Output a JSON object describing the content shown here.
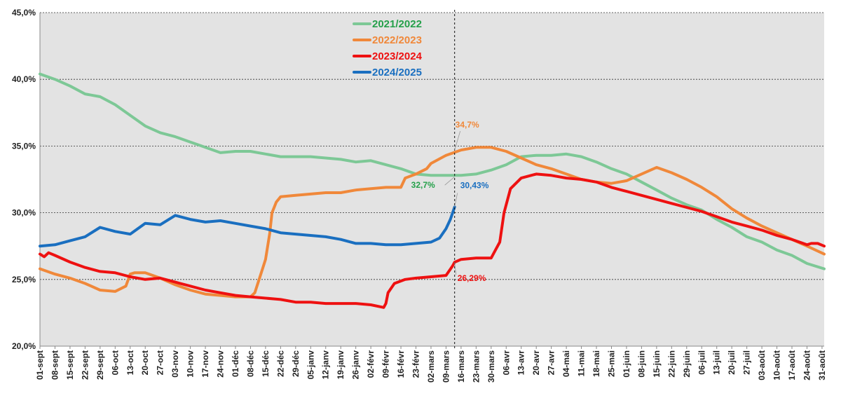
{
  "chart_data": {
    "type": "line",
    "title": "",
    "xlabel": "",
    "ylabel": "",
    "ylim": [
      20,
      45
    ],
    "x_range_days": [
      0,
      365
    ],
    "y_ticks": [
      20,
      25,
      30,
      35,
      40,
      45
    ],
    "y_tick_labels": [
      "20,0%",
      "25,0%",
      "30,0%",
      "35,0%",
      "40,0%",
      "45,0%"
    ],
    "x_tick_labels": [
      "01-sept",
      "08-sept",
      "15-sept",
      "22-sept",
      "29-sept",
      "06-oct",
      "13-oct",
      "20-oct",
      "27-oct",
      "03-nov",
      "10-nov",
      "17-nov",
      "24-nov",
      "01-déc",
      "08-déc",
      "15-déc",
      "22-déc",
      "29-déc",
      "05-janv",
      "12-janv",
      "19-janv",
      "26-janv",
      "02-févr",
      "09-févr",
      "16-févr",
      "23-févr",
      "02-mars",
      "09-mars",
      "16-mars",
      "23-mars",
      "30-mars",
      "06-avr",
      "13-avr",
      "20-avr",
      "27-avr",
      "04-mai",
      "11-mai",
      "18-mai",
      "25-mai",
      "01-juin",
      "08-juin",
      "15-juin",
      "22-juin",
      "29-juin",
      "06-juil",
      "13-juil",
      "20-juil",
      "27-juil",
      "03-août",
      "10-août",
      "17-août",
      "24-août",
      "31-août"
    ],
    "grid": true,
    "background_color": "#e3e3e3",
    "legend_position": "top-center",
    "marker_day": 193,
    "series": [
      {
        "name": "2021/2022",
        "color": "#7dc896",
        "x": [
          0,
          7,
          14,
          21,
          28,
          35,
          42,
          49,
          56,
          63,
          70,
          77,
          84,
          91,
          98,
          105,
          112,
          119,
          126,
          133,
          140,
          147,
          154,
          161,
          168,
          175,
          182,
          189,
          196,
          203,
          210,
          217,
          224,
          231,
          238,
          245,
          252,
          259,
          266,
          273,
          280,
          287,
          294,
          301,
          308,
          315,
          322,
          329,
          336,
          343,
          350,
          357,
          365
        ],
        "y": [
          40.4,
          40.0,
          39.5,
          38.9,
          38.7,
          38.1,
          37.3,
          36.5,
          36.0,
          35.7,
          35.3,
          34.9,
          34.5,
          34.6,
          34.6,
          34.4,
          34.2,
          34.2,
          34.2,
          34.1,
          34.0,
          33.8,
          33.9,
          33.6,
          33.3,
          32.9,
          32.8,
          32.8,
          32.8,
          32.9,
          33.2,
          33.6,
          34.2,
          34.3,
          34.3,
          34.4,
          34.2,
          33.8,
          33.3,
          32.9,
          32.3,
          31.7,
          31.1,
          30.6,
          30.2,
          29.5,
          28.9,
          28.2,
          27.8,
          27.2,
          26.8,
          26.2,
          25.8
        ]
      },
      {
        "name": "2022/2023",
        "color": "#f0883a",
        "x": [
          0,
          7,
          14,
          21,
          28,
          35,
          40,
          42,
          44,
          49,
          56,
          63,
          70,
          77,
          84,
          91,
          98,
          100,
          103,
          105,
          107,
          108,
          109,
          110,
          112,
          119,
          126,
          133,
          140,
          147,
          154,
          161,
          168,
          170,
          175,
          180,
          182,
          189,
          196,
          203,
          210,
          217,
          224,
          231,
          238,
          245,
          252,
          259,
          266,
          273,
          280,
          287,
          294,
          301,
          308,
          315,
          322,
          329,
          336,
          343,
          350,
          357,
          365
        ],
        "y": [
          25.8,
          25.4,
          25.1,
          24.7,
          24.2,
          24.1,
          24.5,
          25.4,
          25.5,
          25.5,
          25.1,
          24.6,
          24.2,
          23.9,
          23.8,
          23.7,
          23.7,
          24.0,
          25.5,
          26.5,
          28.5,
          30.0,
          30.4,
          30.8,
          31.2,
          31.3,
          31.4,
          31.5,
          31.5,
          31.7,
          31.8,
          31.9,
          31.9,
          32.6,
          32.9,
          33.3,
          33.7,
          34.3,
          34.7,
          34.9,
          34.9,
          34.6,
          34.1,
          33.6,
          33.3,
          32.9,
          32.5,
          32.3,
          32.2,
          32.4,
          32.9,
          33.4,
          33.0,
          32.5,
          31.9,
          31.2,
          30.3,
          29.6,
          29.0,
          28.5,
          28.0,
          27.5,
          26.9
        ]
      },
      {
        "name": "2023/2024",
        "color": "#ee1111",
        "x": [
          0,
          2,
          4,
          7,
          14,
          21,
          28,
          35,
          42,
          49,
          56,
          63,
          70,
          77,
          84,
          91,
          98,
          105,
          112,
          119,
          126,
          133,
          140,
          147,
          154,
          160,
          161,
          162,
          165,
          170,
          175,
          182,
          189,
          192,
          193,
          196,
          203,
          210,
          212,
          214,
          216,
          219,
          224,
          231,
          238,
          245,
          252,
          259,
          266,
          273,
          280,
          287,
          294,
          301,
          308,
          315,
          322,
          329,
          336,
          343,
          350,
          357,
          359,
          362,
          365
        ],
        "y": [
          26.9,
          26.7,
          27.0,
          26.8,
          26.3,
          25.9,
          25.6,
          25.5,
          25.2,
          25.0,
          25.1,
          24.8,
          24.5,
          24.2,
          24.0,
          23.8,
          23.7,
          23.6,
          23.5,
          23.3,
          23.3,
          23.2,
          23.2,
          23.2,
          23.1,
          22.9,
          23.2,
          24.0,
          24.7,
          25.0,
          25.1,
          25.2,
          25.3,
          26.0,
          26.29,
          26.5,
          26.6,
          26.6,
          27.2,
          27.8,
          30.0,
          31.8,
          32.6,
          32.9,
          32.8,
          32.6,
          32.5,
          32.3,
          31.9,
          31.6,
          31.3,
          31.0,
          30.7,
          30.4,
          30.1,
          29.7,
          29.3,
          29.0,
          28.7,
          28.3,
          28.0,
          27.6,
          27.7,
          27.7,
          27.5
        ]
      },
      {
        "name": "2024/2025",
        "color": "#1a6fc0",
        "x": [
          0,
          7,
          14,
          21,
          28,
          35,
          42,
          49,
          56,
          63,
          70,
          77,
          84,
          91,
          98,
          105,
          112,
          119,
          126,
          133,
          140,
          147,
          154,
          161,
          168,
          175,
          182,
          186,
          189,
          191,
          193
        ],
        "y": [
          27.5,
          27.6,
          27.9,
          28.2,
          28.9,
          28.6,
          28.4,
          29.2,
          29.1,
          29.8,
          29.5,
          29.3,
          29.4,
          29.2,
          29.0,
          28.8,
          28.5,
          28.4,
          28.3,
          28.2,
          28.0,
          27.7,
          27.7,
          27.6,
          27.6,
          27.7,
          27.8,
          28.1,
          28.8,
          29.5,
          30.43
        ]
      }
    ],
    "annotations": [
      {
        "text": "34,7%",
        "x_day": 193,
        "y": 34.7,
        "color": "#f0883a"
      },
      {
        "text": "32,7%",
        "x_day": 193,
        "y": 32.7,
        "color": "#25a04a"
      },
      {
        "text": "30,43%",
        "x_day": 193,
        "y": 30.43,
        "color": "#1a6fc0"
      },
      {
        "text": "26,29%",
        "x_day": 193,
        "y": 26.29,
        "color": "#ee1111"
      }
    ]
  },
  "legend": {
    "items": [
      {
        "label": "2021/2022",
        "line_color": "#7dc896",
        "text_color": "#25a04a"
      },
      {
        "label": "2022/2023",
        "line_color": "#f0883a",
        "text_color": "#f0883a"
      },
      {
        "label": "2023/2024",
        "line_color": "#ee1111",
        "text_color": "#ee1111"
      },
      {
        "label": "2024/2025",
        "line_color": "#1a6fc0",
        "text_color": "#1a6fc0"
      }
    ]
  }
}
